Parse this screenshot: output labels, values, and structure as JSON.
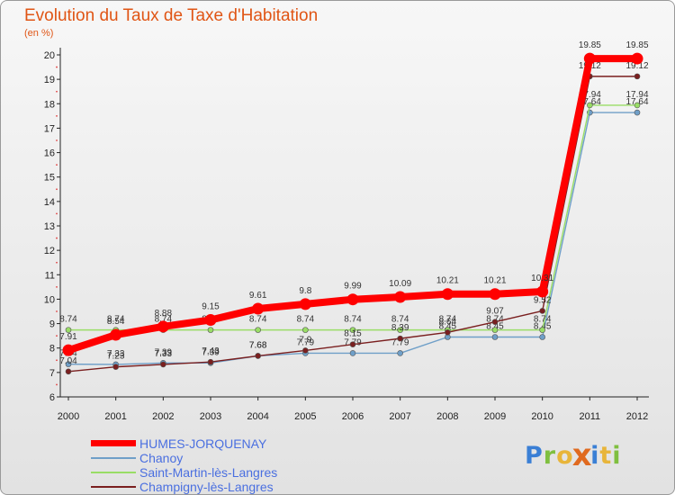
{
  "chart_data": {
    "type": "line",
    "title": "Evolution du Taux de Taxe d'Habitation",
    "ylabel": "(en %)",
    "xlabel": "",
    "ylim": [
      6,
      20
    ],
    "yticks": [
      6,
      7,
      8,
      9,
      10,
      11,
      12,
      13,
      14,
      15,
      16,
      17,
      18,
      19,
      20
    ],
    "grid": false,
    "legend_position": "bottom-left",
    "x": [
      "2000",
      "2001",
      "2002",
      "2003",
      "2004",
      "2005",
      "2006",
      "2007",
      "2008",
      "2009",
      "2010",
      "2011",
      "2012"
    ],
    "series": [
      {
        "name": "HUMES-JORQUENAY",
        "color": "#ff0000",
        "values": [
          7.91,
          8.54,
          8.88,
          9.15,
          9.61,
          9.8,
          9.99,
          10.09,
          10.21,
          10.21,
          10.31,
          19.85,
          19.85
        ]
      },
      {
        "name": "Chanoy",
        "color": "#6f9fc8",
        "values": [
          7.34,
          7.33,
          7.39,
          7.39,
          7.68,
          7.79,
          7.79,
          7.79,
          8.45,
          8.45,
          8.45,
          17.64,
          17.64
        ]
      },
      {
        "name": "Saint-Martin-lès-Langres",
        "color": "#99dd66",
        "values": [
          8.74,
          8.74,
          8.74,
          8.74,
          8.74,
          8.74,
          8.74,
          8.74,
          8.74,
          8.74,
          8.74,
          17.94,
          17.94
        ]
      },
      {
        "name": "Champigny-lès-Langres",
        "color": "#7a1f1f",
        "values": [
          7.04,
          7.23,
          7.33,
          7.43,
          7.68,
          7.9,
          8.15,
          8.39,
          8.64,
          9.07,
          9.52,
          19.12,
          19.12
        ]
      }
    ]
  },
  "logo": {
    "text": "Proxiti",
    "colors": [
      "#3a7fd5",
      "#e8b53a",
      "#7fbf3f",
      "#e06a1f"
    ]
  }
}
